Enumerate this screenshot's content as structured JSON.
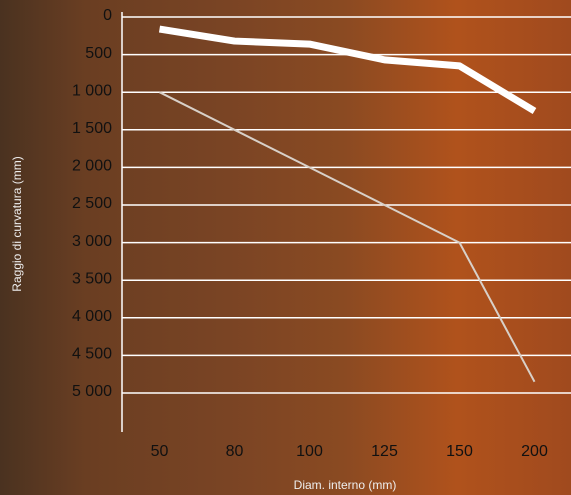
{
  "chart_data": {
    "type": "line",
    "y_label": "Raggio di curvatura (mm)",
    "x_label": "Diam. interno (mm)",
    "categories": [
      "50",
      "80",
      "100",
      "125",
      "150",
      "200"
    ],
    "series": [
      {
        "color": "#ffffff",
        "values": [
          160,
          320,
          360,
          570,
          650,
          1250
        ]
      },
      {
        "color": "#d8d0c8",
        "values": [
          1000,
          1500,
          2000,
          2500,
          3000,
          4850
        ]
      }
    ],
    "ylim": [
      0,
      5000
    ],
    "y_inverted": true,
    "yticks": [
      0,
      500,
      {
        "value": 1000,
        "label": "1 000"
      },
      {
        "value": 1500,
        "label": "1 500"
      },
      {
        "value": 2000,
        "label": "2 000"
      },
      {
        "value": 2500,
        "label": "2 500"
      },
      {
        "value": 3000,
        "label": "3 000"
      },
      {
        "value": 3500,
        "label": "3 500"
      },
      {
        "value": 4000,
        "label": "4 000"
      },
      {
        "value": 4500,
        "label": "4 500"
      },
      {
        "value": 5000,
        "label": "5 000"
      }
    ],
    "grid": true
  }
}
